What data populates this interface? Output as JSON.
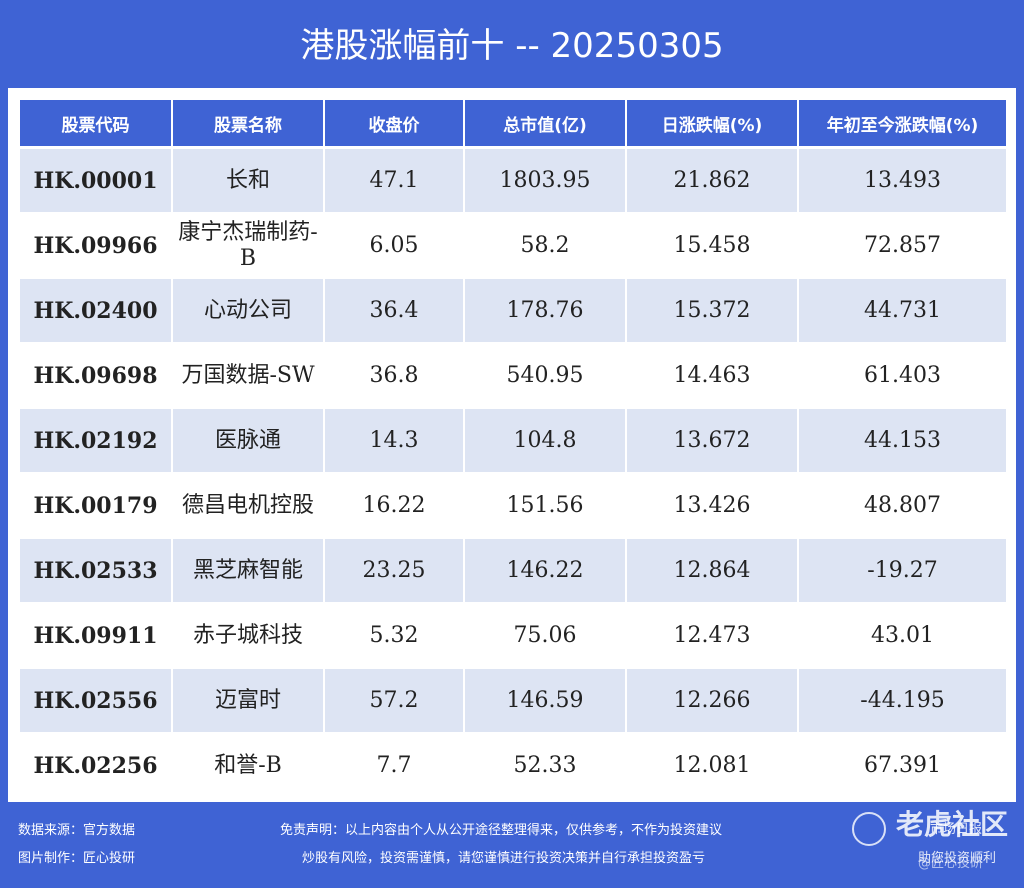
{
  "title": "港股涨幅前十 -- 20250305",
  "table": {
    "headers": [
      "股票代码",
      "股票名称",
      "收盘价",
      "总市值(亿)",
      "日涨跌幅(%)",
      "年初至今涨跌幅(%)"
    ],
    "rows": [
      {
        "code": "HK.00001",
        "name": "长和",
        "close": "47.1",
        "mcap": "1803.95",
        "day": "21.862",
        "ytd": "13.493",
        "ytd_dir": "up"
      },
      {
        "code": "HK.09966",
        "name": "康宁杰瑞制药-B",
        "close": "6.05",
        "mcap": "58.2",
        "day": "15.458",
        "ytd": "72.857",
        "ytd_dir": "up"
      },
      {
        "code": "HK.02400",
        "name": "心动公司",
        "close": "36.4",
        "mcap": "178.76",
        "day": "15.372",
        "ytd": "44.731",
        "ytd_dir": "up"
      },
      {
        "code": "HK.09698",
        "name": "万国数据-SW",
        "close": "36.8",
        "mcap": "540.95",
        "day": "14.463",
        "ytd": "61.403",
        "ytd_dir": "up"
      },
      {
        "code": "HK.02192",
        "name": "医脉通",
        "close": "14.3",
        "mcap": "104.8",
        "day": "13.672",
        "ytd": "44.153",
        "ytd_dir": "up"
      },
      {
        "code": "HK.00179",
        "name": "德昌电机控股",
        "close": "16.22",
        "mcap": "151.56",
        "day": "13.426",
        "ytd": "48.807",
        "ytd_dir": "up"
      },
      {
        "code": "HK.02533",
        "name": "黑芝麻智能",
        "close": "23.25",
        "mcap": "146.22",
        "day": "12.864",
        "ytd": "-19.27",
        "ytd_dir": "down"
      },
      {
        "code": "HK.09911",
        "name": "赤子城科技",
        "close": "5.32",
        "mcap": "75.06",
        "day": "12.473",
        "ytd": "43.01",
        "ytd_dir": "up"
      },
      {
        "code": "HK.02556",
        "name": "迈富时",
        "close": "57.2",
        "mcap": "146.59",
        "day": "12.266",
        "ytd": "-44.195",
        "ytd_dir": "down"
      },
      {
        "code": "HK.02256",
        "name": "和誉-B",
        "close": "7.7",
        "mcap": "52.33",
        "day": "12.081",
        "ytd": "67.391",
        "ytd_dir": "up"
      }
    ]
  },
  "footer": {
    "source": "数据来源：官方数据",
    "maker": "图片制作：匠心投研",
    "disclaimer1": "免责声明：以上内容由个人从公开途径整理得来，仅供参考，不作为投资建议",
    "disclaimer2": "炒股有风险，投资需谨慎，请您谨慎进行投资决策并自行承担投资盈亏"
  },
  "watermark": {
    "brand": "老虎社区",
    "overlay1": "市场日报",
    "overlay2": "助您投资顺利",
    "handle": "@匠心投研"
  },
  "colors": {
    "background": "#3f63d4",
    "row_shade": "#dde4f3",
    "code_text": "#3a5fb8",
    "positive": "#d9342b",
    "negative": "#1e8a1e"
  }
}
